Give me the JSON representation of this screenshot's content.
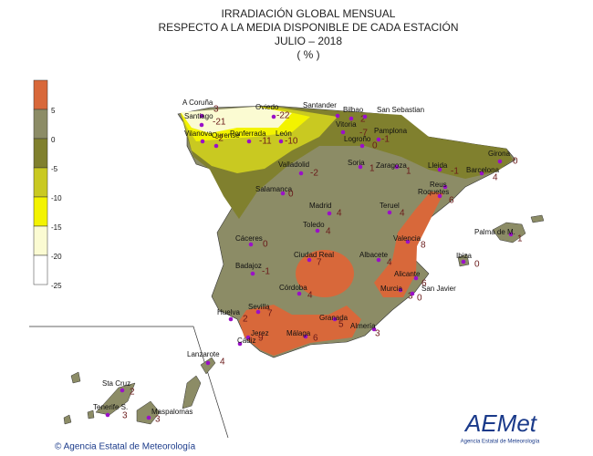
{
  "header": {
    "title": [
      "IRRADIACIÓN GLOBAL MENSUAL",
      "RESPECTO A LA MEDIA DISPONIBLE DE CADA ESTACIÓN",
      "JULIO – 2018",
      "( % )"
    ]
  },
  "legend": {
    "ticks": [
      5,
      0,
      -5,
      -10,
      -15,
      -20,
      -25
    ],
    "colors": [
      "#d8683a",
      "#8c8c66",
      "#80802e",
      "#c9c921",
      "#f3f300",
      "#fbfbd2",
      "#ffffff"
    ]
  },
  "stations": [
    {
      "name": "A Coruña",
      "value": 3
    },
    {
      "name": "Santiago",
      "value": -21
    },
    {
      "name": "Vilanova",
      "value": -2
    },
    {
      "name": "Ourense"
    },
    {
      "name": "Ponferrada",
      "value": -11
    },
    {
      "name": "León",
      "value": -10
    },
    {
      "name": "Oviedo",
      "value": -22
    },
    {
      "name": "Santander"
    },
    {
      "name": "Bilbao",
      "value": 2
    },
    {
      "name": "San Sebastian"
    },
    {
      "name": "Vitoria",
      "value": -7
    },
    {
      "name": "Pamplona",
      "value": -1
    },
    {
      "name": "Logroño",
      "value": 0
    },
    {
      "name": "Valladolid",
      "value": -2
    },
    {
      "name": "Soria",
      "value": 1
    },
    {
      "name": "Zaragoza",
      "value": 1
    },
    {
      "name": "Lleida",
      "value": -1
    },
    {
      "name": "Girona",
      "value": 0
    },
    {
      "name": "Barcelona",
      "value": 4
    },
    {
      "name": "Reus"
    },
    {
      "name": "Roquetes",
      "value": 6
    },
    {
      "name": "Salamanca",
      "value": 0
    },
    {
      "name": "Madrid",
      "value": 4
    },
    {
      "name": "Toledo",
      "value": 4
    },
    {
      "name": "Teruel",
      "value": 4
    },
    {
      "name": "Cáceres",
      "value": 0
    },
    {
      "name": "Valencia",
      "value": 8
    },
    {
      "name": "Palma de M.",
      "value": 1
    },
    {
      "name": "Ibiza",
      "value": 0
    },
    {
      "name": "Badajoz",
      "value": -1
    },
    {
      "name": "Ciudad Real",
      "value": 7
    },
    {
      "name": "Albacete",
      "value": 4
    },
    {
      "name": "Alicante",
      "value": 6
    },
    {
      "name": "Murcia",
      "value": 3
    },
    {
      "name": "San Javier",
      "value": 0
    },
    {
      "name": "Córdoba",
      "value": 4
    },
    {
      "name": "Huelva",
      "value": 2
    },
    {
      "name": "Sevilla",
      "value": 7
    },
    {
      "name": "Granada",
      "value": 5
    },
    {
      "name": "Almería",
      "value": 3
    },
    {
      "name": "Jerez",
      "value": 9
    },
    {
      "name": "Cádiz"
    },
    {
      "name": "Málaga",
      "value": 6
    },
    {
      "name": "Lanzarote",
      "value": 4
    },
    {
      "name": "Sta Cruz",
      "value": 2
    },
    {
      "name": "Tenerife S.",
      "value": 3
    },
    {
      "name": "Maspalomas",
      "value": 3
    }
  ],
  "footer": {
    "copyright": "© Agencia Estatal de Meteorología",
    "logo": "AEMet",
    "logo_subtitle": "Agencia Estatal de Meteorología"
  }
}
